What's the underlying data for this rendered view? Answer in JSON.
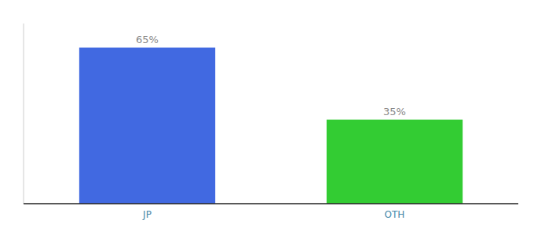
{
  "chart_data": {
    "type": "bar",
    "categories": [
      "JP",
      "OTH"
    ],
    "values": [
      65,
      35
    ],
    "value_labels": [
      "65%",
      "35%"
    ],
    "data_labels": true,
    "colors": [
      "#4169E1",
      "#33cc33"
    ],
    "ylim": [
      0,
      75
    ],
    "tick_labels": "x",
    "grid": false
  }
}
